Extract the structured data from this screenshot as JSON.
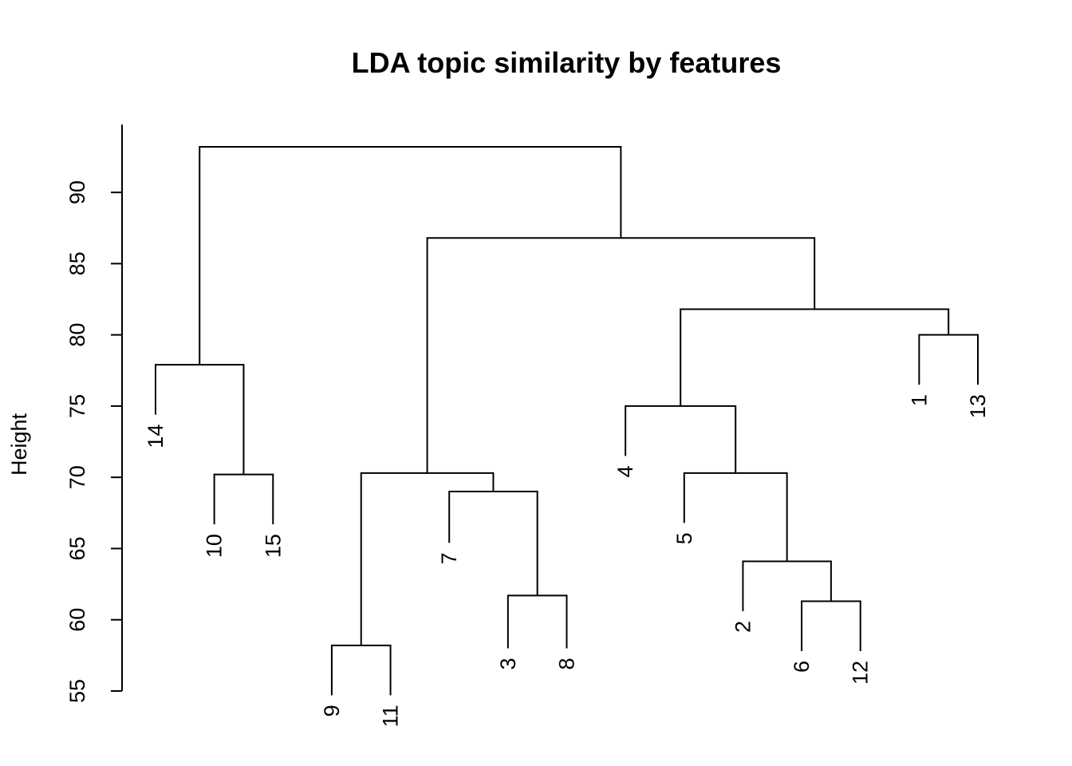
{
  "chart_data": {
    "type": "dendrogram",
    "title": "LDA topic similarity by features",
    "xlabel": "",
    "ylabel": "Height",
    "ylim": [
      55,
      93.2
    ],
    "yticks": [
      55,
      60,
      65,
      70,
      75,
      80,
      85,
      90
    ],
    "grid": false,
    "legend": "none",
    "leaf_order": [
      "14",
      "10",
      "15",
      "9",
      "11",
      "7",
      "3",
      "8",
      "4",
      "5",
      "2",
      "6",
      "12",
      "1",
      "13"
    ],
    "merges": [
      {
        "id": "m1",
        "left": "10",
        "right": "15",
        "height": 70.2
      },
      {
        "id": "m2",
        "left": "14",
        "right": "m1",
        "height": 77.9
      },
      {
        "id": "m3",
        "left": "9",
        "right": "11",
        "height": 58.2
      },
      {
        "id": "m4",
        "left": "3",
        "right": "8",
        "height": 61.7
      },
      {
        "id": "m5",
        "left": "7",
        "right": "m4",
        "height": 69.0
      },
      {
        "id": "m6",
        "left": "m3",
        "right": "m5",
        "height": 70.3
      },
      {
        "id": "m7",
        "left": "6",
        "right": "12",
        "height": 61.3
      },
      {
        "id": "m8",
        "left": "2",
        "right": "m7",
        "height": 64.1
      },
      {
        "id": "m9",
        "left": "5",
        "right": "m8",
        "height": 70.3
      },
      {
        "id": "m10",
        "left": "4",
        "right": "m9",
        "height": 75.0
      },
      {
        "id": "m11",
        "left": "1",
        "right": "13",
        "height": 80.0
      },
      {
        "id": "m12",
        "left": "m10",
        "right": "m11",
        "height": 81.8
      },
      {
        "id": "m13",
        "left": "m6",
        "right": "m12",
        "height": 86.8
      },
      {
        "id": "m14",
        "left": "m2",
        "right": "m13",
        "height": 93.2
      }
    ],
    "leaf_heights": {
      "14": 74.4,
      "10": 66.7,
      "15": 66.7,
      "9": 54.7,
      "11": 54.7,
      "7": 65.4,
      "3": 58.0,
      "8": 58.0,
      "4": 71.5,
      "5": 66.8,
      "2": 60.6,
      "6": 57.8,
      "12": 57.8,
      "1": 76.5,
      "13": 76.5
    }
  }
}
